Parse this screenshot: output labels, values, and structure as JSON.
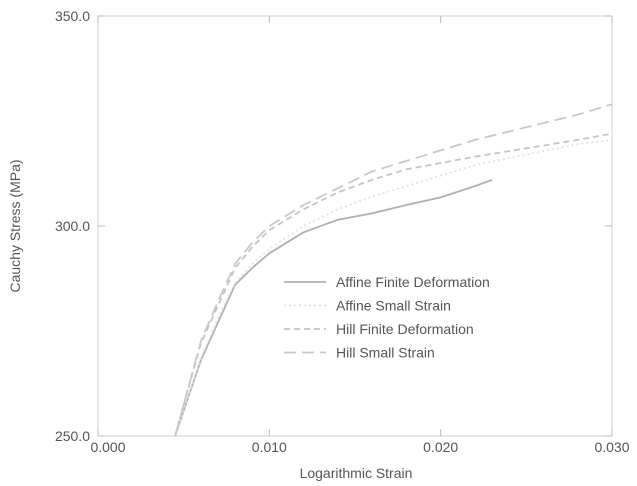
{
  "chart_data": {
    "type": "line",
    "title": "",
    "xlabel": "Logarithmic Strain",
    "ylabel": "Cauchy Stress (MPa)",
    "xlim": [
      0.0,
      0.03
    ],
    "ylim": [
      250.0,
      350.0
    ],
    "x_ticks": [
      0.0,
      0.01,
      0.02,
      0.03
    ],
    "x_tick_labels": [
      "0.000",
      "0.010",
      "0.020",
      "0.030"
    ],
    "y_ticks": [
      250.0,
      300.0,
      350.0
    ],
    "y_tick_labels": [
      "250.0",
      "300.0",
      "350.0"
    ],
    "grid": false,
    "legend_position": "center-right",
    "series": [
      {
        "name": "Affine Finite Deformation",
        "color": "#b0b0b0",
        "dash": "solid",
        "points": [
          [
            0.0045,
            250.0
          ],
          [
            0.006,
            268.0
          ],
          [
            0.007,
            277.0
          ],
          [
            0.008,
            286.0
          ],
          [
            0.009,
            290.0
          ],
          [
            0.01,
            293.5
          ],
          [
            0.012,
            298.5
          ],
          [
            0.014,
            301.5
          ],
          [
            0.016,
            303.0
          ],
          [
            0.018,
            305.0
          ],
          [
            0.02,
            306.8
          ],
          [
            0.022,
            309.5
          ],
          [
            0.023,
            311.0
          ]
        ]
      },
      {
        "name": "Affine Small Strain",
        "color": "#e2e2e2",
        "dash": "dotted",
        "points": [
          [
            0.0045,
            250.0
          ],
          [
            0.006,
            268.5
          ],
          [
            0.007,
            278.0
          ],
          [
            0.008,
            286.5
          ],
          [
            0.009,
            291.0
          ],
          [
            0.01,
            294.5
          ],
          [
            0.012,
            300.0
          ],
          [
            0.014,
            304.0
          ],
          [
            0.016,
            307.0
          ],
          [
            0.018,
            309.5
          ],
          [
            0.02,
            312.0
          ],
          [
            0.022,
            314.5
          ],
          [
            0.025,
            317.0
          ],
          [
            0.028,
            319.5
          ],
          [
            0.03,
            320.5
          ]
        ]
      },
      {
        "name": "Hill Finite Deformation",
        "color": "#c4c4c4",
        "dash": "dashed",
        "points": [
          [
            0.0045,
            250.0
          ],
          [
            0.006,
            272.0
          ],
          [
            0.007,
            281.0
          ],
          [
            0.008,
            290.0
          ],
          [
            0.009,
            295.0
          ],
          [
            0.01,
            299.0
          ],
          [
            0.012,
            304.0
          ],
          [
            0.014,
            308.0
          ],
          [
            0.016,
            311.0
          ],
          [
            0.018,
            313.5
          ],
          [
            0.02,
            315.0
          ],
          [
            0.022,
            316.5
          ],
          [
            0.025,
            318.5
          ],
          [
            0.028,
            320.5
          ],
          [
            0.03,
            322.0
          ]
        ]
      },
      {
        "name": "Hill Small Strain",
        "color": "#c8c8c8",
        "dash": "long-dash",
        "points": [
          [
            0.0045,
            250.0
          ],
          [
            0.006,
            272.5
          ],
          [
            0.007,
            282.0
          ],
          [
            0.008,
            291.0
          ],
          [
            0.009,
            296.0
          ],
          [
            0.01,
            300.0
          ],
          [
            0.012,
            305.0
          ],
          [
            0.014,
            309.0
          ],
          [
            0.016,
            313.0
          ],
          [
            0.018,
            315.5
          ],
          [
            0.02,
            318.0
          ],
          [
            0.022,
            320.5
          ],
          [
            0.025,
            323.5
          ],
          [
            0.028,
            326.5
          ],
          [
            0.03,
            329.0
          ]
        ]
      }
    ]
  }
}
